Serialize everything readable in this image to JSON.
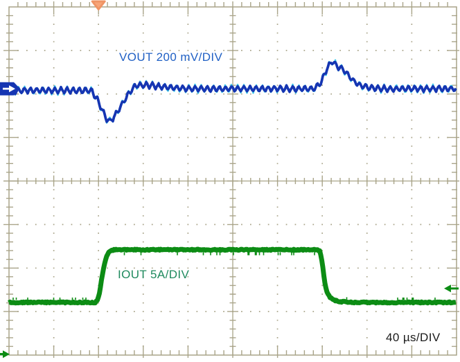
{
  "chart_data": {
    "type": "line",
    "subtype": "oscilloscope-capture",
    "title": "",
    "x_axis": {
      "unit": "µs",
      "us_per_div": 40,
      "range_us": [
        0,
        400
      ],
      "divisions": 10,
      "label": "40 µs/DIV"
    },
    "grid": {
      "cols": 10,
      "rows": 8,
      "style": "dotted-minor-divisions",
      "color": "#a9a489"
    },
    "series": [
      {
        "name": "VOUT",
        "label": "VOUT 200 mV/DIV",
        "unit": "mV",
        "per_div": 200,
        "color": "#1535b2",
        "accent_color": "#3cc6e8",
        "text_color": "#2060c4",
        "baseline_div_from_top": 1.88,
        "ripple_period_us": 5.45,
        "ripple_amplitude_mV": 28,
        "points": [
          [
            0,
            -8
          ],
          [
            74,
            -8
          ],
          [
            80,
            -60
          ],
          [
            86,
            -128
          ],
          [
            90,
            -152
          ],
          [
            95,
            -122
          ],
          [
            101,
            -72
          ],
          [
            107,
            -22
          ],
          [
            113,
            14
          ],
          [
            122,
            18
          ],
          [
            134,
            10
          ],
          [
            150,
            3
          ],
          [
            160,
            0
          ],
          [
            273,
            0
          ],
          [
            279,
            30
          ],
          [
            284,
            90
          ],
          [
            289,
            128
          ],
          [
            292,
            108
          ],
          [
            297,
            95
          ],
          [
            302,
            70
          ],
          [
            308,
            36
          ],
          [
            315,
            12
          ],
          [
            325,
            3
          ],
          [
            340,
            0
          ],
          [
            400,
            0
          ]
        ]
      },
      {
        "name": "IOUT",
        "label": "IOUT 5A/DIV",
        "unit": "A",
        "per_div": 5,
        "color": "#0c8c14",
        "text_color": "#1f8a5e",
        "baseline_div_from_top": 6.79,
        "points": [
          [
            0,
            0
          ],
          [
            77,
            0
          ],
          [
            79,
            0.2
          ],
          [
            81,
            1.2
          ],
          [
            84,
            3.6
          ],
          [
            87,
            5.3
          ],
          [
            90,
            5.9
          ],
          [
            94,
            6.05
          ],
          [
            100,
            6.05
          ],
          [
            275,
            6.05
          ],
          [
            278,
            5.9
          ],
          [
            280,
            4.6
          ],
          [
            282,
            2.4
          ],
          [
            284,
            1.2
          ],
          [
            287,
            0.55
          ],
          [
            291,
            0.25
          ],
          [
            296,
            0.1
          ],
          [
            303,
            0.03
          ],
          [
            310,
            0
          ],
          [
            400,
            0
          ]
        ]
      }
    ],
    "annotations": [
      {
        "text": "40 µs/DIV",
        "position": "bottom-right",
        "color": "#1a1a1a"
      }
    ],
    "markers": {
      "trigger": {
        "shape": "triangle-down",
        "edge": "top",
        "t_us": 80,
        "color": "#f7a478",
        "stroke": "#ef9465"
      },
      "vout_channel": {
        "shape": "arrow-right-tag",
        "edge": "left",
        "div_from_top": 1.88,
        "color": "#1535b2",
        "glyph_color": "#ffffff"
      },
      "iout_level": {
        "shape": "arrow-left",
        "edge": "right",
        "div_from_top": 6.47,
        "color": "#0c8c14"
      },
      "iout_ground": {
        "shape": "arrow-right",
        "edge": "bottom-left",
        "div_from_top": 7.98,
        "color": "#0c8c14"
      }
    },
    "legend_position": "on-plot",
    "events": {
      "load_step_up_us": 80,
      "load_step_down_us": 280,
      "load_step_amps": 6
    }
  }
}
